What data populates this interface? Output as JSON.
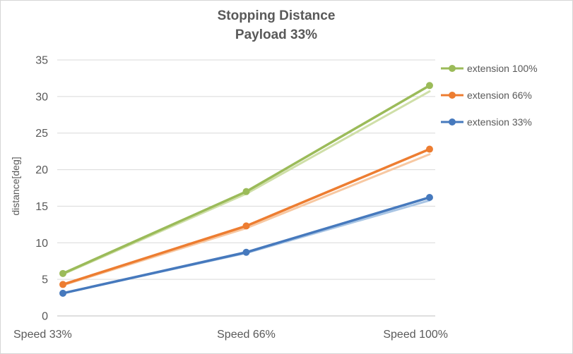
{
  "chart_data": {
    "type": "line",
    "title": "Stopping Distance",
    "subtitle": "Payload 33%",
    "ylabel": "distance[deg]",
    "xlabel": "",
    "categories": [
      "Speed 33%",
      "Speed 66%",
      "Speed 100%"
    ],
    "series": [
      {
        "name": "extension 100%",
        "color": "#9bbb59",
        "light_color": "#cfdfa8",
        "values": [
          5.8,
          17.0,
          31.5
        ],
        "shadow_values": [
          5.7,
          16.7,
          30.7
        ]
      },
      {
        "name": "extension 66%",
        "color": "#ed7d31",
        "light_color": "#f7c8a2",
        "values": [
          4.3,
          12.3,
          22.8
        ],
        "shadow_values": [
          4.2,
          12.0,
          22.1
        ]
      },
      {
        "name": "extension 33%",
        "color": "#4679bd",
        "light_color": "#a9c5e4",
        "values": [
          3.1,
          8.7,
          16.2
        ],
        "shadow_values": [
          3.1,
          8.6,
          15.8
        ]
      }
    ],
    "ylim": [
      0,
      35
    ],
    "ytick_step": 5,
    "grid": true,
    "legend_position": "right",
    "text_color": "#595959",
    "grid_color": "#d9d9d9",
    "axis_color": "#bfbfbf"
  }
}
